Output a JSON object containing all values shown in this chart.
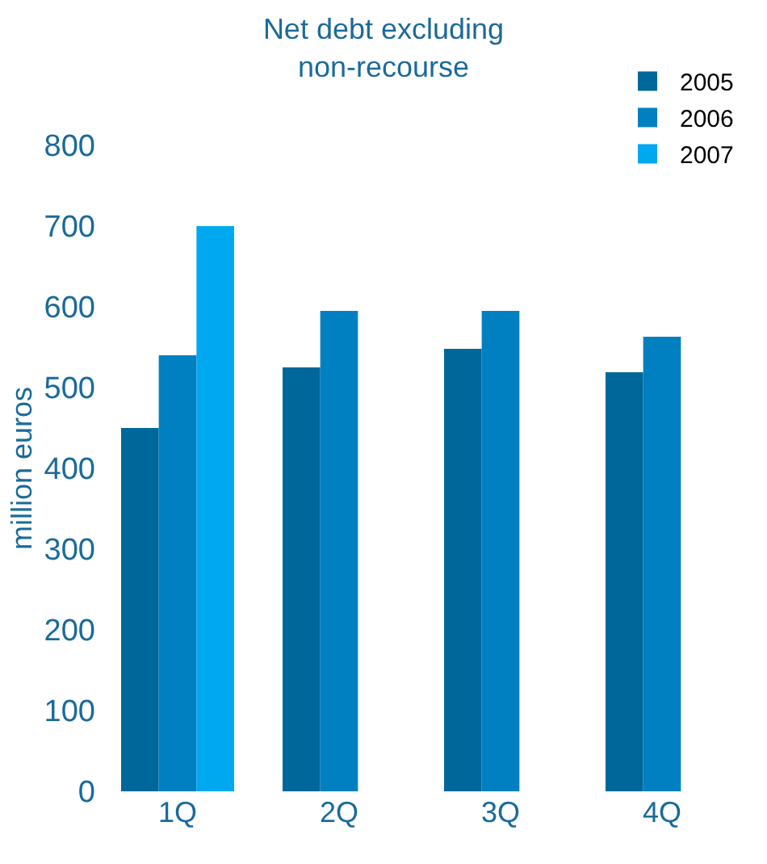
{
  "chart_data": {
    "type": "bar",
    "title": "Net debt excluding\nnon-recourse",
    "ylabel": "million euros",
    "categories": [
      "1Q",
      "2Q",
      "3Q",
      "4Q"
    ],
    "series": [
      {
        "name": "2005",
        "color": "#00679a",
        "values": [
          450,
          525,
          548,
          519
        ]
      },
      {
        "name": "2006",
        "color": "#0080c0",
        "values": [
          540,
          595,
          595,
          563
        ]
      },
      {
        "name": "2007",
        "color": "#00a8f0",
        "values": [
          700,
          null,
          null,
          null
        ]
      }
    ],
    "ylim": [
      0,
      800
    ],
    "yticks": [
      0,
      100,
      200,
      300,
      400,
      500,
      600,
      700,
      800
    ],
    "legend": "top right"
  }
}
